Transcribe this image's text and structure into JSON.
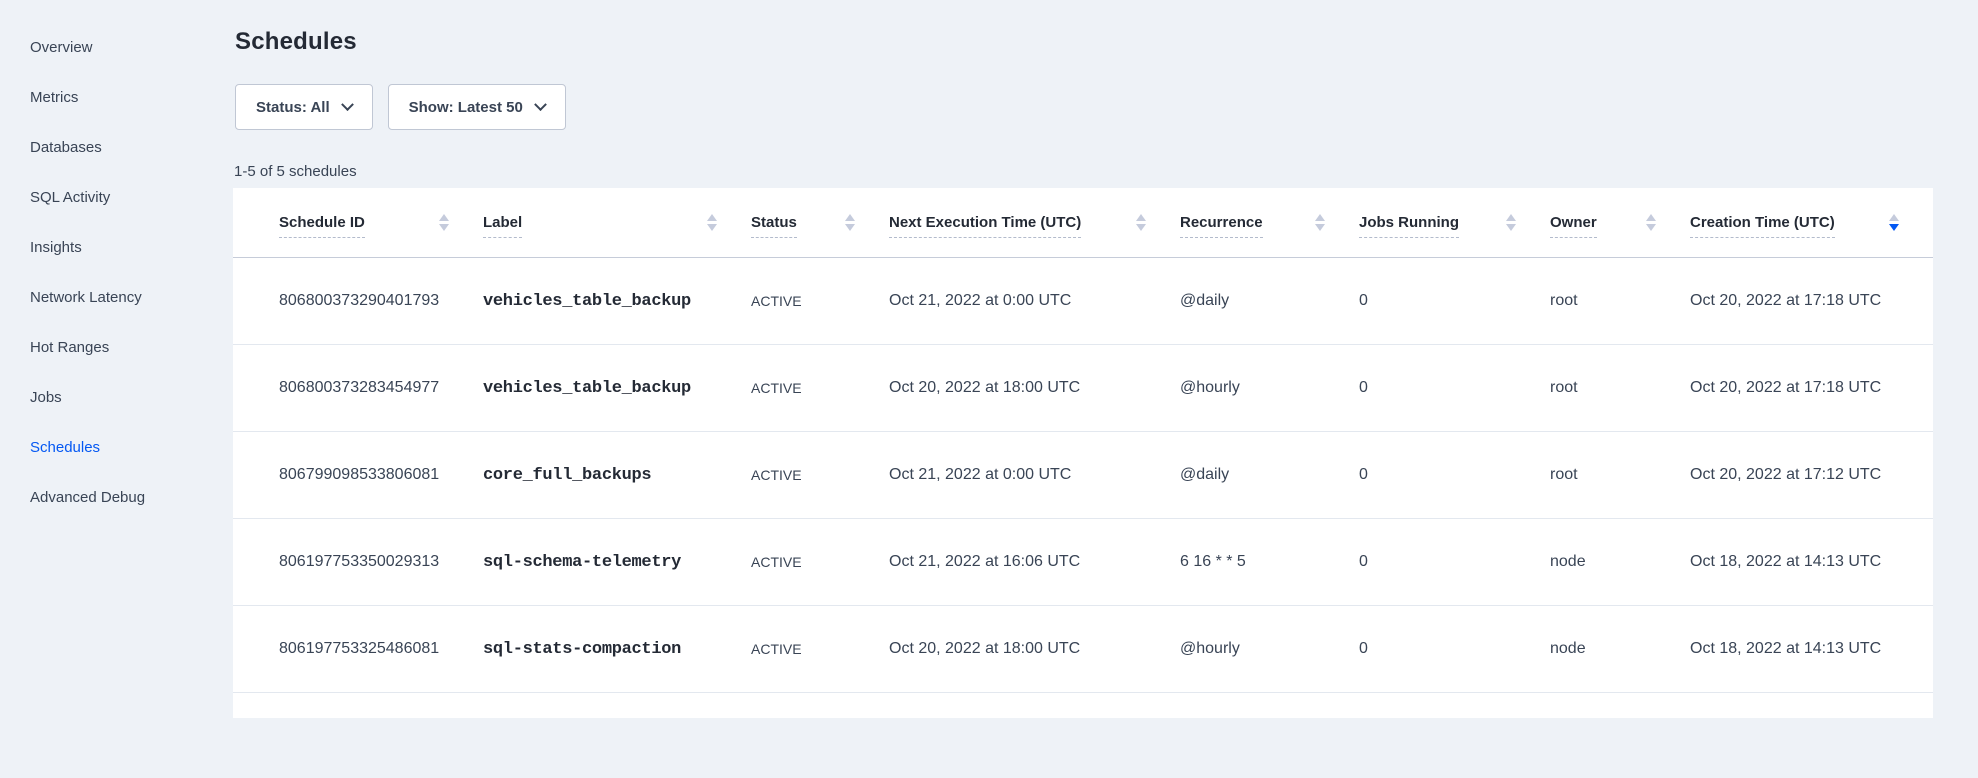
{
  "colors": {
    "background": "#eef2f7",
    "accent_blue": "#0458f3",
    "text_dark": "#242a35",
    "text_body": "#394455"
  },
  "sidebar": {
    "items": [
      {
        "label": "Overview",
        "active": false
      },
      {
        "label": "Metrics",
        "active": false
      },
      {
        "label": "Databases",
        "active": false
      },
      {
        "label": "SQL Activity",
        "active": false
      },
      {
        "label": "Insights",
        "active": false
      },
      {
        "label": "Network Latency",
        "active": false
      },
      {
        "label": "Hot Ranges",
        "active": false
      },
      {
        "label": "Jobs",
        "active": false
      },
      {
        "label": "Schedules",
        "active": true
      },
      {
        "label": "Advanced Debug",
        "active": false
      }
    ]
  },
  "page": {
    "title": "Schedules"
  },
  "filters": {
    "status_label": "Status: All",
    "show_label": "Show: Latest 50"
  },
  "summary": {
    "text": "1-5 of 5 schedules"
  },
  "table": {
    "columns": [
      {
        "label": "Schedule ID",
        "sorted": "none"
      },
      {
        "label": "Label",
        "sorted": "none"
      },
      {
        "label": "Status",
        "sorted": "none"
      },
      {
        "label": "Next Execution Time (UTC)",
        "sorted": "none"
      },
      {
        "label": "Recurrence",
        "sorted": "none"
      },
      {
        "label": "Jobs Running",
        "sorted": "none"
      },
      {
        "label": "Owner",
        "sorted": "none"
      },
      {
        "label": "Creation Time (UTC)",
        "sorted": "desc"
      }
    ],
    "rows": [
      [
        "806800373290401793",
        "vehicles_table_backup",
        "ACTIVE",
        "Oct 21, 2022 at 0:00 UTC",
        "@daily",
        "0",
        "root",
        "Oct 20, 2022 at 17:18 UTC"
      ],
      [
        "806800373283454977",
        "vehicles_table_backup",
        "ACTIVE",
        "Oct 20, 2022 at 18:00 UTC",
        "@hourly",
        "0",
        "root",
        "Oct 20, 2022 at 17:18 UTC"
      ],
      [
        "806799098533806081",
        "core_full_backups",
        "ACTIVE",
        "Oct 21, 2022 at 0:00 UTC",
        "@daily",
        "0",
        "root",
        "Oct 20, 2022 at 17:12 UTC"
      ],
      [
        "806197753350029313",
        "sql-schema-telemetry",
        "ACTIVE",
        "Oct 21, 2022 at 16:06 UTC",
        "6 16 * * 5",
        "0",
        "node",
        "Oct 18, 2022 at 14:13 UTC"
      ],
      [
        "806197753325486081",
        "sql-stats-compaction",
        "ACTIVE",
        "Oct 20, 2022 at 18:00 UTC",
        "@hourly",
        "0",
        "node",
        "Oct 18, 2022 at 14:13 UTC"
      ]
    ]
  }
}
